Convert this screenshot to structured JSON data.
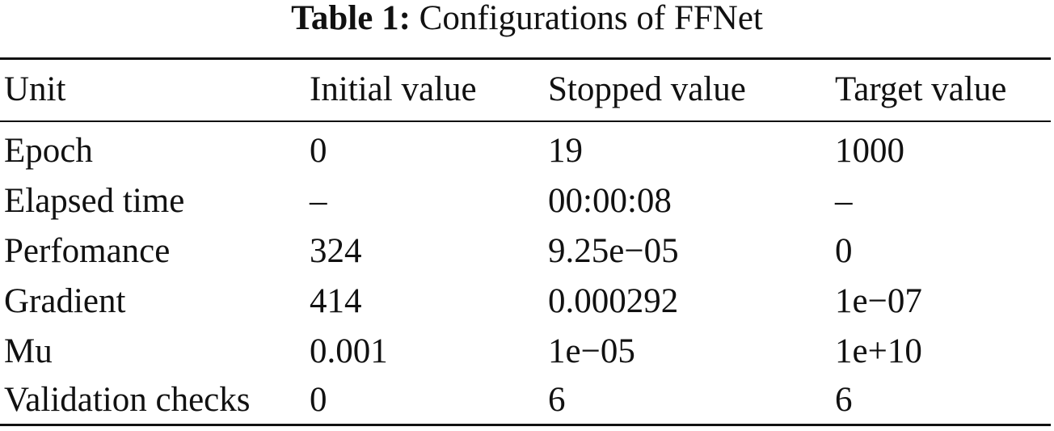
{
  "caption": {
    "label": "Table 1:",
    "text": "Configurations of FFNet"
  },
  "table": {
    "headers": [
      "Unit",
      "Initial value",
      "Stopped value",
      "Target value"
    ],
    "rows": [
      [
        "Epoch",
        "0",
        "19",
        "1000"
      ],
      [
        "Elapsed time",
        "–",
        "00:00:08",
        "–"
      ],
      [
        "Perfomance",
        "324",
        "9.25e−05",
        "0"
      ],
      [
        "Gradient",
        "414",
        "0.000292",
        "1e−07"
      ],
      [
        "Mu",
        "0.001",
        "1e−05",
        "1e+10"
      ],
      [
        "Validation checks",
        "0",
        "6",
        "6"
      ]
    ]
  }
}
